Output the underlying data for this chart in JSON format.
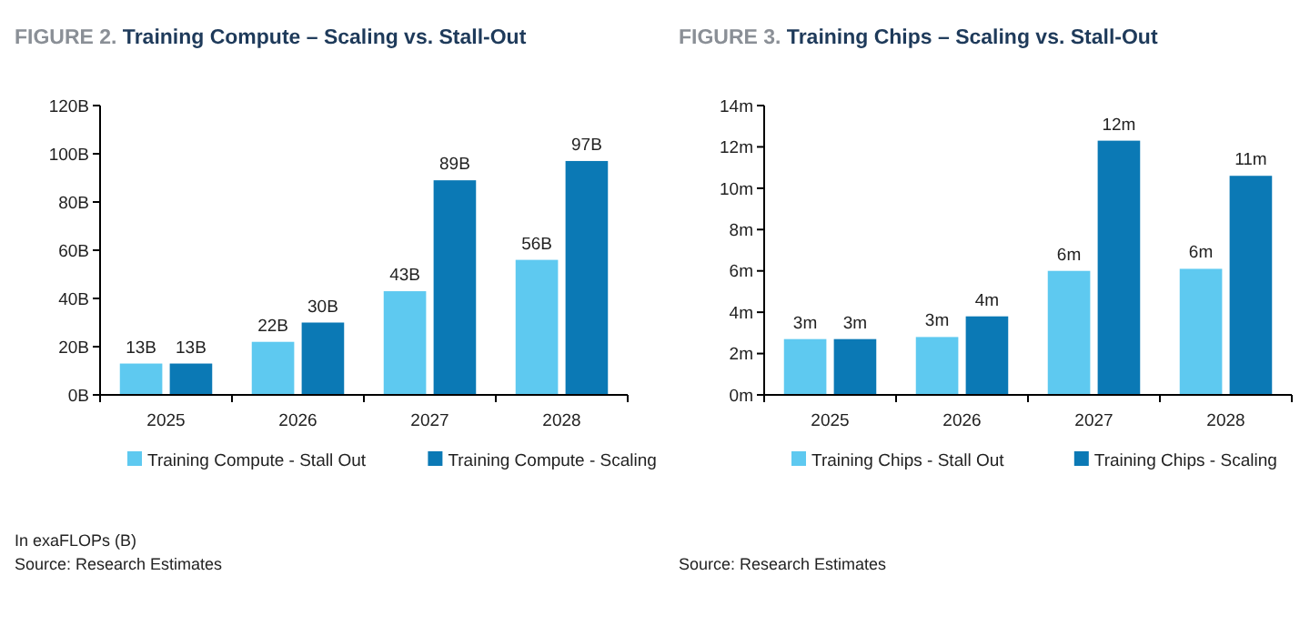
{
  "chart_data": [
    {
      "type": "bar",
      "title": "FIGURE 2. Training Compute – Scaling vs. Stall-Out",
      "categories": [
        "2025",
        "2026",
        "2027",
        "2028"
      ],
      "series": [
        {
          "name": "Training Compute - Stall Out",
          "color": "#5ec9f0",
          "values": [
            13,
            22,
            43,
            56
          ],
          "value_labels": [
            "13B",
            "22B",
            "43B",
            "56B"
          ]
        },
        {
          "name": "Training Compute - Scaling",
          "color": "#0b79b5",
          "values": [
            13,
            30,
            89,
            97
          ],
          "value_labels": [
            "13B",
            "30B",
            "89B",
            "97B"
          ]
        }
      ],
      "ylim": [
        0,
        120
      ],
      "yticks": [
        {
          "value": 0,
          "label": "0B"
        },
        {
          "value": 20,
          "label": "20B"
        },
        {
          "value": 40,
          "label": "40B"
        },
        {
          "value": 60,
          "label": "60B"
        },
        {
          "value": 80,
          "label": "80B"
        },
        {
          "value": 100,
          "label": "100B"
        },
        {
          "value": 120,
          "label": "120B"
        }
      ],
      "grid": false,
      "legend": "bottom",
      "annotations": [
        "In exaFLOPs (B)",
        "Source: Research Estimates"
      ]
    },
    {
      "type": "bar",
      "title": "FIGURE 3. Training Chips – Scaling vs. Stall-Out",
      "categories": [
        "2025",
        "2026",
        "2027",
        "2028"
      ],
      "series": [
        {
          "name": "Training Chips - Stall Out",
          "color": "#5ec9f0",
          "values": [
            2.7,
            2.8,
            6.0,
            6.1
          ],
          "value_labels": [
            "3m",
            "3m",
            "6m",
            "6m"
          ]
        },
        {
          "name": "Training Chips - Scaling",
          "color": "#0b79b5",
          "values": [
            2.7,
            3.8,
            12.3,
            10.6
          ],
          "value_labels": [
            "3m",
            "4m",
            "12m",
            "11m"
          ]
        }
      ],
      "ylim": [
        0,
        14
      ],
      "yticks": [
        {
          "value": 0,
          "label": "0m"
        },
        {
          "value": 2,
          "label": "2m"
        },
        {
          "value": 4,
          "label": "4m"
        },
        {
          "value": 6,
          "label": "6m"
        },
        {
          "value": 8,
          "label": "8m"
        },
        {
          "value": 10,
          "label": "10m"
        },
        {
          "value": 12,
          "label": "12m"
        },
        {
          "value": 14,
          "label": "14m"
        }
      ],
      "grid": false,
      "legend": "bottom",
      "annotations": [
        "Source: Research Estimates"
      ]
    }
  ]
}
